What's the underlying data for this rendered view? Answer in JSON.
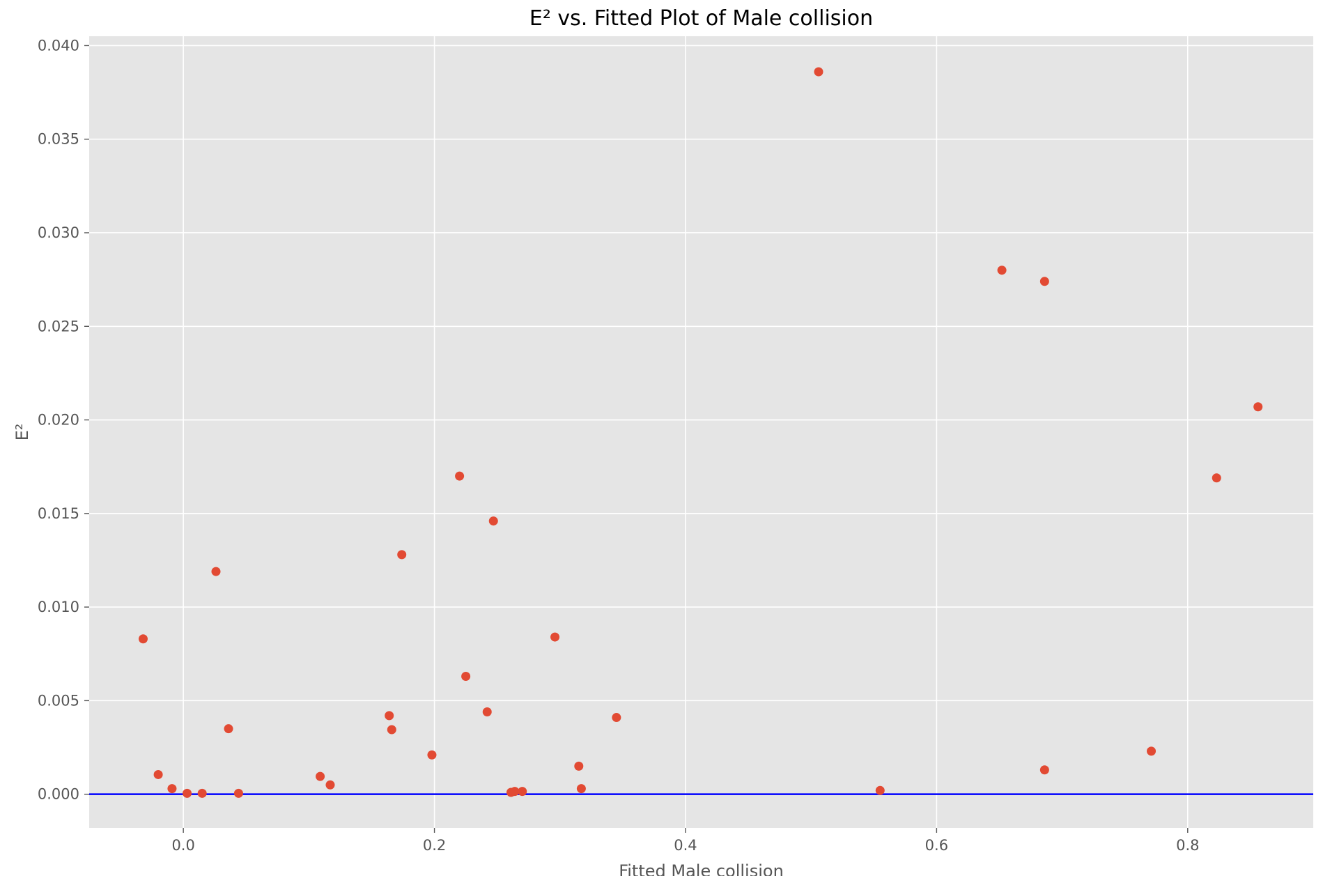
{
  "chart_data": {
    "type": "scatter",
    "title": "E² vs. Fitted Plot of Male collision",
    "xlabel": "Fitted Male collision",
    "ylabel": "E²",
    "xlim": [
      -0.075,
      0.9
    ],
    "ylim": [
      -0.0018,
      0.0405
    ],
    "x_ticks": [
      0.0,
      0.2,
      0.4,
      0.6,
      0.8
    ],
    "x_tick_labels": [
      "0.0",
      "0.2",
      "0.4",
      "0.6",
      "0.8"
    ],
    "y_ticks": [
      0.0,
      0.005,
      0.01,
      0.015,
      0.02,
      0.025,
      0.03,
      0.035,
      0.04
    ],
    "y_tick_labels": [
      "0.000",
      "0.005",
      "0.010",
      "0.015",
      "0.020",
      "0.025",
      "0.030",
      "0.035",
      "0.040"
    ],
    "grid": true,
    "legend": "none",
    "reference_line": {
      "y": 0.0,
      "color": "#0000ff"
    },
    "colors": {
      "points": "#e24a33",
      "plot_background": "#e5e5e5",
      "grid": "#ffffff"
    },
    "points": [
      {
        "x": -0.032,
        "y": 0.0083
      },
      {
        "x": -0.02,
        "y": 0.00105
      },
      {
        "x": -0.009,
        "y": 0.0003
      },
      {
        "x": 0.003,
        "y": 5e-05
      },
      {
        "x": 0.015,
        "y": 5e-05
      },
      {
        "x": 0.026,
        "y": 0.0119
      },
      {
        "x": 0.036,
        "y": 0.0035
      },
      {
        "x": 0.044,
        "y": 5e-05
      },
      {
        "x": 0.109,
        "y": 0.00095
      },
      {
        "x": 0.117,
        "y": 0.0005
      },
      {
        "x": 0.164,
        "y": 0.0042
      },
      {
        "x": 0.166,
        "y": 0.00345
      },
      {
        "x": 0.174,
        "y": 0.0128
      },
      {
        "x": 0.198,
        "y": 0.0021
      },
      {
        "x": 0.22,
        "y": 0.017
      },
      {
        "x": 0.225,
        "y": 0.0063
      },
      {
        "x": 0.242,
        "y": 0.0044
      },
      {
        "x": 0.247,
        "y": 0.0146
      },
      {
        "x": 0.261,
        "y": 0.0001
      },
      {
        "x": 0.264,
        "y": 0.00015
      },
      {
        "x": 0.27,
        "y": 0.00015
      },
      {
        "x": 0.296,
        "y": 0.0084
      },
      {
        "x": 0.315,
        "y": 0.0015
      },
      {
        "x": 0.317,
        "y": 0.0003
      },
      {
        "x": 0.345,
        "y": 0.0041
      },
      {
        "x": 0.506,
        "y": 0.0386
      },
      {
        "x": 0.555,
        "y": 0.0002
      },
      {
        "x": 0.652,
        "y": 0.028
      },
      {
        "x": 0.686,
        "y": 0.0013
      },
      {
        "x": 0.686,
        "y": 0.0274
      },
      {
        "x": 0.771,
        "y": 0.0023
      },
      {
        "x": 0.823,
        "y": 0.0169
      },
      {
        "x": 0.856,
        "y": 0.0207
      }
    ]
  }
}
